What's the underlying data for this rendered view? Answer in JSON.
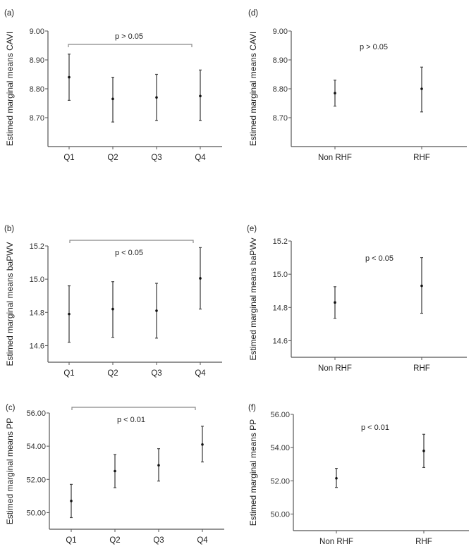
{
  "chart_data": [
    {
      "panel": "(a)",
      "type": "scatter",
      "error_bars": true,
      "ylabel": "Estimed marginal means CAVI",
      "categories": [
        "Q1",
        "Q2",
        "Q3",
        "Q4"
      ],
      "values": [
        8.84,
        8.765,
        8.77,
        8.775
      ],
      "lower": [
        8.76,
        8.685,
        8.69,
        8.69
      ],
      "upper": [
        8.92,
        8.84,
        8.85,
        8.865
      ],
      "yticks": [
        "8.70",
        "8.80",
        "8.90",
        "9.00"
      ],
      "ylim": [
        8.6,
        9.0
      ],
      "annotation": "p > 0.05",
      "bracket": true
    },
    {
      "panel": "(b)",
      "type": "scatter",
      "error_bars": true,
      "ylabel": "Estimed marginal means baPWV",
      "categories": [
        "Q1",
        "Q2",
        "Q3",
        "Q4"
      ],
      "values": [
        14.79,
        14.82,
        14.81,
        15.005
      ],
      "lower": [
        14.62,
        14.65,
        14.645,
        14.82
      ],
      "upper": [
        14.96,
        14.985,
        14.975,
        15.19
      ],
      "yticks": [
        "14.6",
        "14.8",
        "15.0",
        "15.2"
      ],
      "ylim": [
        14.5,
        15.2
      ],
      "annotation": "p < 0.05",
      "bracket": true
    },
    {
      "panel": "(c)",
      "type": "scatter",
      "error_bars": true,
      "ylabel": "Estimed marginal means PP",
      "categories": [
        "Q1",
        "Q2",
        "Q3",
        "Q4"
      ],
      "values": [
        50.7,
        52.5,
        52.85,
        54.1
      ],
      "lower": [
        49.7,
        51.5,
        51.9,
        53.05
      ],
      "upper": [
        51.7,
        53.5,
        53.85,
        55.2
      ],
      "yticks": [
        "50.00",
        "52.00",
        "54.00",
        "56.00"
      ],
      "ylim": [
        49.0,
        56.0
      ],
      "annotation": "p < 0.01",
      "bracket": true
    },
    {
      "panel": "(d)",
      "type": "scatter",
      "error_bars": true,
      "ylabel": "Estimed marginal means CAVI",
      "categories": [
        "Non RHF",
        "RHF"
      ],
      "values": [
        8.785,
        8.8
      ],
      "lower": [
        8.74,
        8.72
      ],
      "upper": [
        8.83,
        8.875
      ],
      "yticks": [
        "8.70",
        "8.80",
        "8.90",
        "9.00"
      ],
      "ylim": [
        8.6,
        9.0
      ],
      "annotation": "p > 0.05",
      "bracket": false
    },
    {
      "panel": "(e)",
      "type": "scatter",
      "error_bars": true,
      "ylabel": "Estimed marginal means baPWv",
      "categories": [
        "Non RHF",
        "RHF"
      ],
      "values": [
        14.83,
        14.93
      ],
      "lower": [
        14.735,
        14.765
      ],
      "upper": [
        14.925,
        15.1
      ],
      "yticks": [
        "14.6",
        "14.8",
        "15.0",
        "15.2"
      ],
      "ylim": [
        14.5,
        15.2
      ],
      "annotation": "p < 0.05",
      "bracket": false
    },
    {
      "panel": "(f)",
      "type": "scatter",
      "error_bars": true,
      "ylabel": "Estimed marginal means PP",
      "categories": [
        "Non RHF",
        "RHF"
      ],
      "values": [
        52.15,
        53.8
      ],
      "lower": [
        51.6,
        52.8
      ],
      "upper": [
        52.75,
        54.8
      ],
      "yticks": [
        "50.00",
        "52.00",
        "54.00",
        "56.00"
      ],
      "ylim": [
        49.0,
        56.0
      ],
      "annotation": "p < 0.01",
      "bracket": false
    }
  ]
}
